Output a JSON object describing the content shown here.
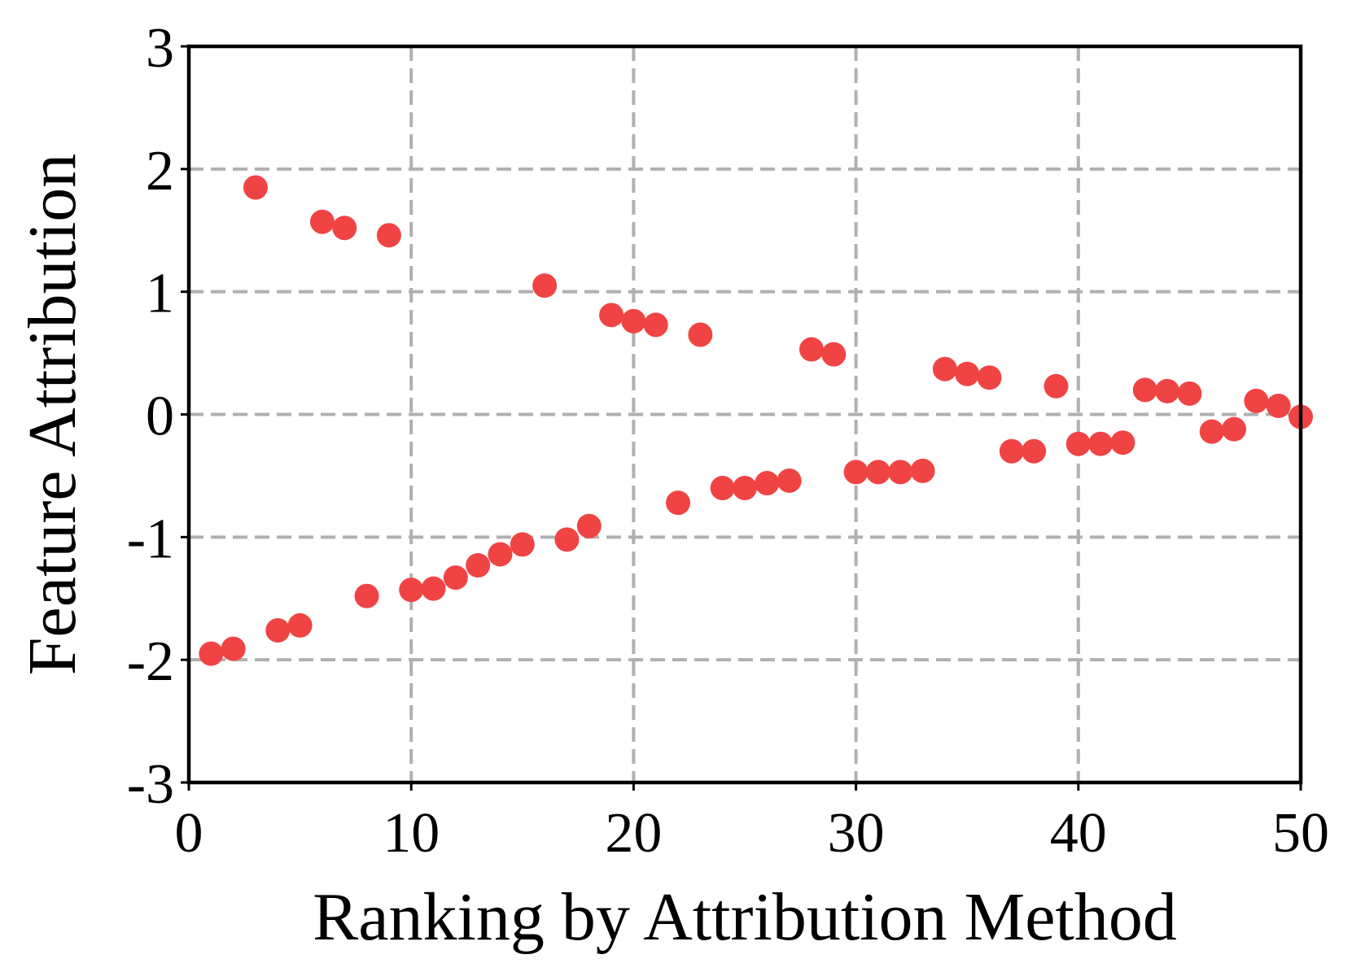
{
  "chart_data": {
    "type": "scatter",
    "title": "",
    "xlabel": "Ranking by Attribution Method",
    "ylabel": "Feature Attribution",
    "xlim": [
      0,
      50
    ],
    "ylim": [
      -3,
      3
    ],
    "xticks": [
      0,
      10,
      20,
      30,
      40,
      50
    ],
    "yticks": [
      3,
      2,
      1,
      0,
      -1,
      -2,
      -3
    ],
    "xtick_labels": [
      "0",
      "10",
      "20",
      "30",
      "40",
      "50"
    ],
    "ytick_labels": [
      "3",
      "2",
      "1",
      "0",
      "-1",
      "-2",
      "-3"
    ],
    "grid": true,
    "legend": "none",
    "marker_color": "#f04444",
    "series": [
      {
        "x": [
          1,
          2,
          3,
          4,
          5,
          6,
          7,
          8,
          9,
          10,
          11,
          12,
          13,
          14,
          15,
          16,
          17,
          18,
          19,
          20,
          21,
          22,
          23,
          24,
          25,
          26,
          27,
          28,
          29,
          30,
          31,
          32,
          33,
          34,
          35,
          36,
          37,
          38,
          39,
          40,
          41,
          42,
          43,
          44,
          45,
          46,
          47,
          48,
          49,
          50
        ],
        "y": [
          -1.95,
          -1.91,
          1.85,
          -1.76,
          -1.72,
          1.57,
          1.52,
          -1.48,
          1.46,
          -1.43,
          -1.42,
          -1.33,
          -1.23,
          -1.14,
          -1.06,
          1.05,
          -1.02,
          -0.91,
          0.81,
          0.76,
          0.73,
          -0.72,
          0.65,
          -0.6,
          -0.6,
          -0.56,
          -0.54,
          0.53,
          0.49,
          -0.47,
          -0.47,
          -0.47,
          -0.46,
          0.37,
          0.33,
          0.3,
          -0.3,
          -0.3,
          0.23,
          -0.24,
          -0.24,
          -0.23,
          0.2,
          0.19,
          0.17,
          -0.14,
          -0.12,
          0.11,
          0.07,
          -0.02
        ]
      }
    ]
  }
}
